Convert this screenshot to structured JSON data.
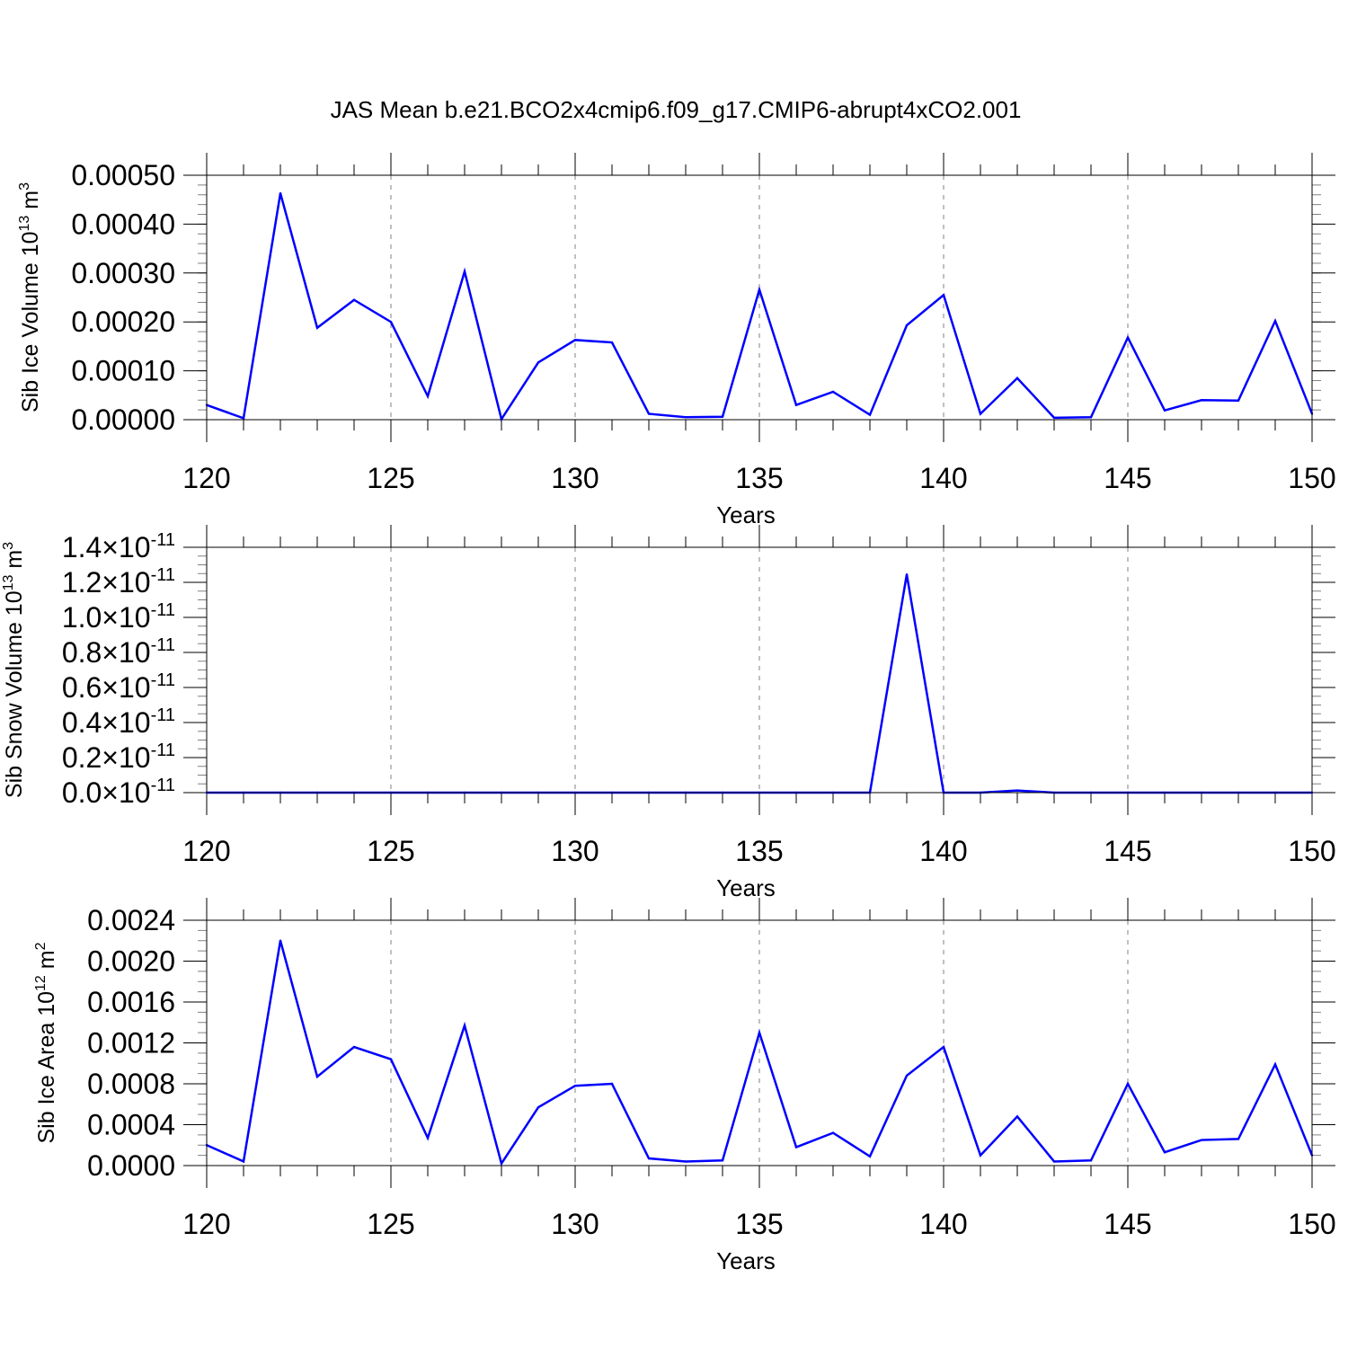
{
  "title": "JAS Mean b.e21.BCO2x4cmip6.f09_g17.CMIP6-abrupt4xCO2.001",
  "colors": {
    "line": "#0000ff",
    "axis": "#000000",
    "grid": "#808080"
  },
  "chart_data": [
    {
      "type": "line",
      "ylabel_main": "Sib Ice Volume 10",
      "ylabel_sup1": "13",
      "ylabel_unit": " m",
      "ylabel_sup2": "3",
      "xlabel": "Years",
      "xlim": [
        120,
        150
      ],
      "ylim": [
        0,
        0.0005
      ],
      "x_ticks": [
        "120",
        "125",
        "130",
        "135",
        "140",
        "145",
        "150"
      ],
      "y_ticks": [
        "0.00000",
        "0.00010",
        "0.00020",
        "0.00030",
        "0.00040",
        "0.00050"
      ],
      "y_tick_values": [
        0,
        0.0001,
        0.0002,
        0.0003,
        0.0004,
        0.0005
      ],
      "y_minor_step": 2e-05,
      "grid": "vertical dashed at major x ticks",
      "x": [
        120,
        121,
        122,
        123,
        124,
        125,
        126,
        127,
        128,
        129,
        130,
        131,
        132,
        133,
        134,
        135,
        136,
        137,
        138,
        139,
        140,
        141,
        142,
        143,
        144,
        145,
        146,
        147,
        148,
        149,
        150
      ],
      "values": [
        3e-05,
        3e-06,
        0.000463,
        0.000188,
        0.000245,
        0.0002,
        4.8e-05,
        0.000303,
        1e-06,
        0.000117,
        0.000163,
        0.000158,
        1.2e-05,
        5e-06,
        6e-06,
        0.000266,
        3e-05,
        5.7e-05,
        1e-05,
        0.000193,
        0.000255,
        1.2e-05,
        8.5e-05,
        4e-06,
        5e-06,
        0.000168,
        1.9e-05,
        4e-05,
        3.9e-05,
        0.000202,
        1.2e-05
      ]
    },
    {
      "type": "line",
      "ylabel_main": "Sib Snow Volume 10",
      "ylabel_sup1": "13",
      "ylabel_unit": " m",
      "ylabel_sup2": "3",
      "xlabel": "Years",
      "xlim": [
        120,
        150
      ],
      "ylim": [
        0,
        1.4e-11
      ],
      "x_ticks": [
        "120",
        "125",
        "130",
        "135",
        "140",
        "145",
        "150"
      ],
      "y_ticks": [
        "0.0",
        "0.2",
        "0.4",
        "0.6",
        "0.8",
        "1.0",
        "1.2",
        "1.4"
      ],
      "y_tick_values": [
        0,
        2e-12,
        4e-12,
        6e-12,
        8e-12,
        1e-11,
        1.2e-11,
        1.4e-11
      ],
      "y_tick_times": "×10",
      "y_tick_exp": "-11",
      "y_minor_step": 5e-13,
      "grid": "vertical dashed at major x ticks",
      "x": [
        120,
        121,
        122,
        123,
        124,
        125,
        126,
        127,
        128,
        129,
        130,
        131,
        132,
        133,
        134,
        135,
        136,
        137,
        138,
        139,
        140,
        141,
        142,
        143,
        144,
        145,
        146,
        147,
        148,
        149,
        150
      ],
      "values": [
        0,
        0,
        0,
        0,
        0,
        0,
        0,
        0,
        0,
        0,
        0,
        0,
        0,
        0,
        0,
        0,
        0,
        0,
        0,
        1.245e-11,
        0,
        0,
        1.2e-13,
        0,
        0,
        0,
        0,
        0,
        0,
        0,
        0
      ]
    },
    {
      "type": "line",
      "ylabel_main": "Sib Ice Area 10",
      "ylabel_sup1": "12",
      "ylabel_unit": " m",
      "ylabel_sup2": "2",
      "xlabel": "Years",
      "xlim": [
        120,
        150
      ],
      "ylim": [
        0,
        0.0024
      ],
      "x_ticks": [
        "120",
        "125",
        "130",
        "135",
        "140",
        "145",
        "150"
      ],
      "y_ticks": [
        "0.0000",
        "0.0004",
        "0.0008",
        "0.0012",
        "0.0016",
        "0.0020",
        "0.0024"
      ],
      "y_tick_values": [
        0,
        0.0004,
        0.0008,
        0.0012,
        0.0016,
        0.002,
        0.0024
      ],
      "y_minor_step": 0.0001,
      "grid": "vertical dashed at major x ticks",
      "x": [
        120,
        121,
        122,
        123,
        124,
        125,
        126,
        127,
        128,
        129,
        130,
        131,
        132,
        133,
        134,
        135,
        136,
        137,
        138,
        139,
        140,
        141,
        142,
        143,
        144,
        145,
        146,
        147,
        148,
        149,
        150
      ],
      "values": [
        0.0002,
        4e-05,
        0.0022,
        0.00087,
        0.00116,
        0.00104,
        0.00027,
        0.00137,
        2e-05,
        0.00057,
        0.00078,
        0.0008,
        7e-05,
        4e-05,
        5e-05,
        0.0013,
        0.00018,
        0.00032,
        9e-05,
        0.00088,
        0.00116,
        0.0001,
        0.00048,
        4e-05,
        5e-05,
        0.0008,
        0.00013,
        0.00025,
        0.00026,
        0.00099,
        0.0001
      ]
    }
  ]
}
